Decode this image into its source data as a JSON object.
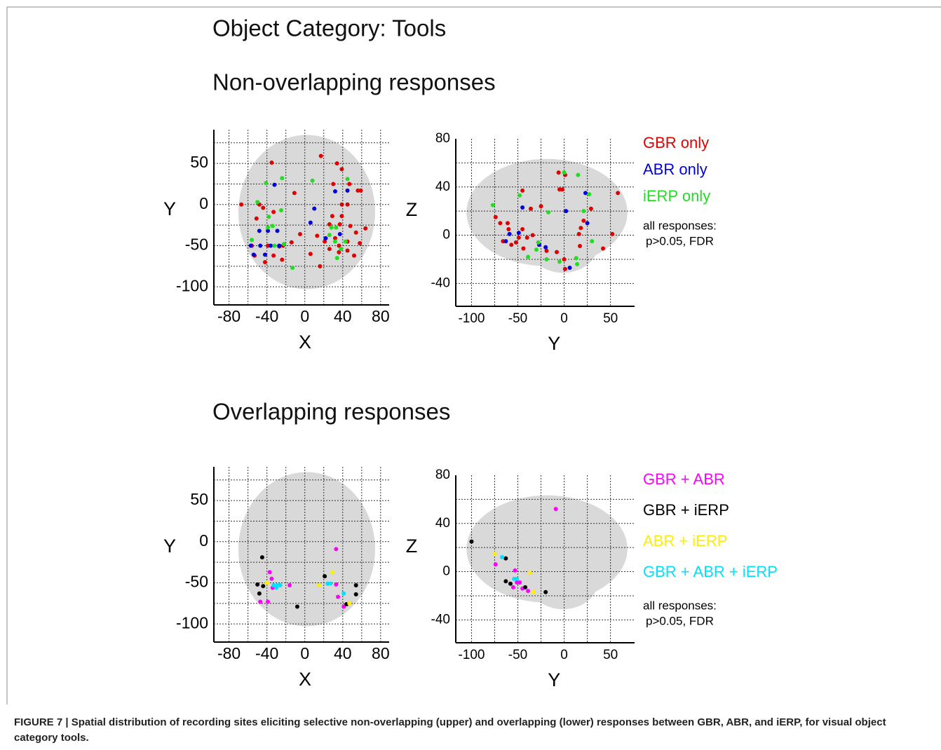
{
  "title": "Object Category: Tools",
  "subtitles": [
    "Non-overlapping responses",
    "Overlapping responses"
  ],
  "caption": "FIGURE 7 | Spatial distribution of recording sites eliciting selective non-overlapping (upper) and overlapping (lower) responses between GBR, ABR, and iERP, for visual object category tools.",
  "chart_data": [
    {
      "type": "scatter",
      "xlabel": "X",
      "ylabel": "Y",
      "xlim": [
        -96,
        89
      ],
      "ylim": [
        -122,
        91
      ],
      "xticks": [
        -80,
        -40,
        0,
        40,
        80
      ],
      "yticks": [
        50,
        0,
        -50,
        -100
      ],
      "xgrid": [
        -80,
        -60,
        -40,
        -20,
        0,
        20,
        40,
        60,
        80
      ],
      "ygrid": [
        75,
        50,
        25,
        0,
        -25,
        -50,
        -75,
        -100
      ],
      "series": [
        {
          "color": "#e00000",
          "x": [
            -67,
            -35,
            17,
            34,
            39,
            30,
            47,
            56,
            59,
            -11,
            -48,
            -44,
            39,
            45,
            -51,
            -33,
            26,
            37,
            48,
            64,
            -5,
            13,
            21,
            32,
            45,
            58,
            -56,
            -39,
            -27,
            -23,
            6,
            26,
            36,
            52,
            -53,
            -33,
            -42,
            -24,
            16,
            36,
            45,
            -14,
            54,
            29,
            39
          ],
          "values": [
            0,
            51,
            59,
            50,
            43,
            25,
            25,
            17,
            17,
            14,
            0,
            -4,
            0,
            0,
            -17,
            -9,
            -24,
            -24,
            -26,
            -29,
            -36,
            -38,
            -45,
            -41,
            -45,
            -47,
            -50,
            -50,
            -51,
            -50,
            -60,
            -54,
            -58,
            -62,
            -62,
            -62,
            -70,
            -67,
            -75,
            -50,
            -56,
            -46,
            -34,
            -14,
            -14
          ]
        },
        {
          "color": "#0000e0",
          "x": [
            -32,
            32,
            10,
            -48,
            -39,
            -29,
            -57,
            -47,
            -36,
            -27,
            -54,
            -42,
            6,
            22,
            37,
            45
          ],
          "values": [
            24,
            16,
            -5,
            -32,
            -32,
            -32,
            -50,
            -50,
            -50,
            -50,
            -61,
            -61,
            -22,
            -41,
            -36,
            17
          ]
        },
        {
          "color": "#22dd22",
          "x": [
            -41,
            -24,
            8,
            45,
            -50,
            -25,
            -38,
            -39,
            -34,
            28,
            33,
            26,
            32,
            43,
            38,
            34,
            -13,
            -56,
            -32,
            -22
          ],
          "values": [
            26,
            32,
            29,
            31,
            3,
            -7,
            -15,
            -28,
            -26,
            -28,
            -28,
            -37,
            -45,
            -45,
            -54,
            -65,
            -77,
            -43,
            -50,
            -48
          ]
        }
      ]
    },
    {
      "type": "scatter",
      "xlabel": "Y",
      "ylabel": "Z",
      "xlim": [
        -117,
        76
      ],
      "ylim": [
        -59,
        80
      ],
      "xticks": [
        -100,
        -50,
        0,
        50
      ],
      "yticks": [
        80,
        40,
        0,
        -40
      ],
      "xgrid": [
        -100,
        -75,
        -50,
        -25,
        0,
        25,
        50
      ],
      "ygrid": [
        60,
        40,
        20,
        0,
        -20,
        -40
      ],
      "series": [
        {
          "name": "GBR only",
          "color": "#e00000",
          "x": [
            -6,
            1,
            -45,
            -5,
            -2,
            58,
            -25,
            -36,
            -74,
            -69,
            -61,
            -45,
            -60,
            -49,
            -52,
            -40,
            -34,
            21,
            18,
            16,
            29,
            52,
            42,
            -66,
            -57,
            -44,
            -19,
            -8,
            0,
            1,
            17
          ],
          "values": [
            52,
            50,
            37,
            38,
            38,
            35,
            24,
            22,
            15,
            10,
            10,
            5,
            5,
            -2,
            -6,
            -2,
            0,
            12,
            6,
            1,
            22,
            1,
            -11,
            -5,
            -8,
            -11,
            -13,
            -14,
            -20,
            -28,
            -9
          ]
        },
        {
          "name": "ABR only",
          "color": "#0000e0",
          "x": [
            -59,
            -45,
            2,
            23,
            -63,
            -49,
            -27,
            -20,
            6,
            25
          ],
          "values": [
            1,
            23,
            20,
            35,
            -5,
            2,
            -8,
            -10,
            -27,
            10
          ]
        },
        {
          "name": "iERP only",
          "color": "#22dd22",
          "x": [
            -77,
            -48,
            -17,
            0,
            15,
            27,
            21,
            -28,
            -30,
            -19,
            -5,
            13,
            14,
            30,
            -39
          ],
          "values": [
            25,
            33,
            19,
            52,
            50,
            34,
            20,
            -6,
            -12,
            -20,
            -22,
            -19,
            -24,
            -5,
            -18
          ]
        }
      ],
      "note": [
        "all responses:",
        "p>0.05, FDR"
      ]
    },
    {
      "type": "scatter",
      "xlabel": "X",
      "ylabel": "Y",
      "xlim": [
        -96,
        89
      ],
      "ylim": [
        -122,
        91
      ],
      "xticks": [
        -80,
        -40,
        0,
        40,
        80
      ],
      "yticks": [
        50,
        0,
        -50,
        -100
      ],
      "xgrid": [
        -80,
        -60,
        -40,
        -20,
        0,
        20,
        40,
        60,
        80
      ],
      "ygrid": [
        75,
        50,
        25,
        0,
        -25,
        -50,
        -75,
        -100
      ],
      "series": [
        {
          "color": "#ff00ff",
          "x": [
            -37,
            -35,
            -47,
            -39,
            -34,
            -16,
            33,
            33,
            35,
            41
          ],
          "values": [
            -37,
            -45,
            -73,
            -73,
            -56,
            -53,
            -9,
            -52,
            -67,
            -79
          ]
        },
        {
          "color": "#000000",
          "x": [
            -45,
            -50,
            -48,
            -44,
            21,
            54,
            54,
            -8,
            44
          ],
          "values": [
            -19,
            -52,
            -63,
            -54,
            -42,
            -53,
            -64,
            -79,
            -76
          ]
        },
        {
          "color": "#ffee00",
          "x": [
            15,
            29,
            47,
            -40
          ],
          "values": [
            -53,
            -37,
            -75,
            -50
          ]
        },
        {
          "color": "#00e0ff",
          "x": [
            -33,
            -29,
            -26,
            24,
            27,
            41,
            -30
          ],
          "values": [
            -53,
            -53,
            -53,
            -51,
            -51,
            -63,
            -56
          ]
        }
      ]
    },
    {
      "type": "scatter",
      "xlabel": "Y",
      "ylabel": "Z",
      "xlim": [
        -117,
        76
      ],
      "ylim": [
        -59,
        80
      ],
      "xticks": [
        -100,
        -50,
        0,
        50
      ],
      "yticks": [
        80,
        40,
        0,
        -40
      ],
      "xgrid": [
        -100,
        -75,
        -50,
        -25,
        0,
        25,
        50
      ],
      "ygrid": [
        60,
        40,
        20,
        0,
        -20,
        -40
      ],
      "series": [
        {
          "name": "GBR + ABR",
          "color": "#ff00ff",
          "x": [
            -9,
            -74,
            -53,
            -51,
            -55,
            -48,
            -45,
            -39
          ],
          "values": [
            52,
            6,
            1,
            -9,
            -13,
            -9,
            -14,
            -16
          ]
        },
        {
          "name": "GBR + iERP",
          "color": "#000000",
          "x": [
            -100,
            -63,
            -63,
            -58,
            -42,
            -20
          ],
          "values": [
            25,
            11,
            -8,
            -10,
            -13,
            -17
          ]
        },
        {
          "name": "ABR + iERP",
          "color": "#ffee00",
          "x": [
            -75,
            -37,
            -33
          ],
          "values": [
            15,
            -1,
            -17
          ]
        },
        {
          "name": "GBR + ABR + iERP",
          "color": "#00e0ff",
          "x": [
            -67,
            -54,
            -51
          ],
          "values": [
            12,
            -6,
            -6
          ]
        }
      ],
      "note": [
        "all responses:",
        "p>0.05, FDR"
      ]
    }
  ]
}
